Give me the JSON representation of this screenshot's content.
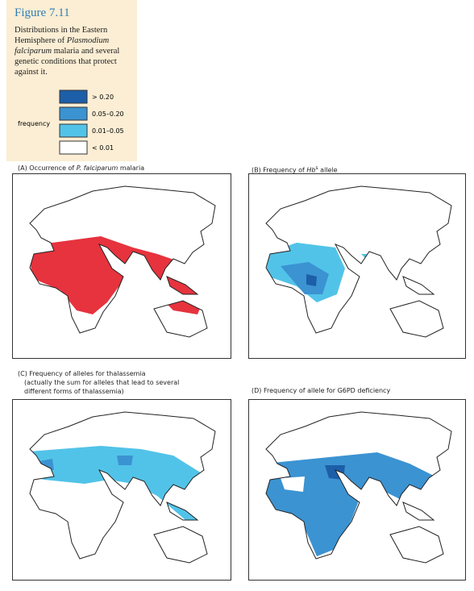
{
  "sidebar": {
    "title": "Figure 7.11",
    "caption": [
      "Distributions in the Eastern Hemisphere of ",
      "Plasmodium falciparum",
      " malaria and several genetic conditions that protect against it."
    ],
    "legend_title": "frequency",
    "legend": [
      {
        "label": "> 0.20",
        "color": "#1d5ea8"
      },
      {
        "label": "0.05–0.20",
        "color": "#3b93d2"
      },
      {
        "label": "0.01–0.05",
        "color": "#52c3e8"
      },
      {
        "label": "< 0.01",
        "color": "#ffffff"
      }
    ]
  },
  "malaria_color": "#e6333e",
  "panels": [
    {
      "title": [
        "(A) Occurrence of ",
        "P. falciparum",
        " malaria"
      ]
    },
    {
      "title": [
        "(B) Frequency of ",
        "Hb",
        "s",
        " allele"
      ]
    },
    {
      "title": [
        "(C) Frequency of alleles for thalassemia",
        "(actually the sum for alleles that lead to several",
        "different forms of thalassemia)"
      ]
    },
    {
      "title": [
        "(D) Frequency of allele for G6PD deficiency"
      ]
    }
  ]
}
